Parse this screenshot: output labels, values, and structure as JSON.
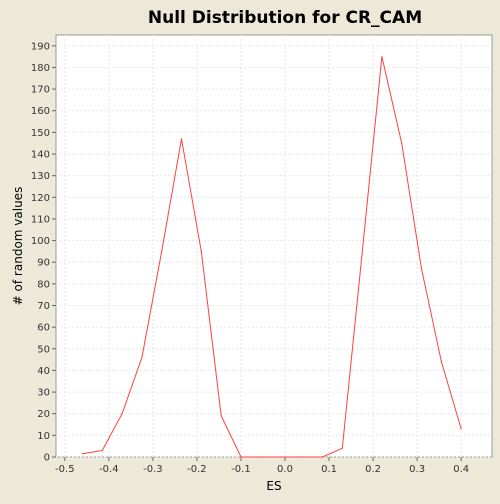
{
  "chart_data": {
    "type": "line",
    "title": "Null Distribution for CR_CAM",
    "xlabel": "ES",
    "ylabel": "# of random values",
    "xlim": [
      -0.52,
      0.47
    ],
    "ylim": [
      0,
      195
    ],
    "x_ticks": [
      -0.5,
      -0.4,
      -0.3,
      -0.2,
      -0.1,
      0.0,
      0.1,
      0.2,
      0.3,
      0.4
    ],
    "x_tick_labels": [
      "-0.5",
      "-0.4",
      "-0.3",
      "-0.2",
      "-0.1",
      "0.0",
      "0.1",
      "0.2",
      "0.3",
      "0.4"
    ],
    "y_ticks": [
      0,
      10,
      20,
      30,
      40,
      50,
      60,
      70,
      80,
      90,
      100,
      110,
      120,
      130,
      140,
      150,
      160,
      170,
      180,
      190
    ],
    "grid": true,
    "colors": {
      "line": "#ff4040",
      "plot_bg": "#ffffff",
      "grid": "#e6e6e6",
      "page_bg": "#ece9d8"
    },
    "series": [
      {
        "x": [
          -0.46,
          -0.415,
          -0.37,
          -0.325,
          -0.28,
          -0.235,
          -0.19,
          -0.145,
          -0.1,
          -0.055,
          -0.01,
          0.035,
          0.085,
          0.13,
          0.175,
          0.22,
          0.265,
          0.31,
          0.355,
          0.4
        ],
        "y": [
          1.5,
          3,
          20,
          46,
          95,
          147,
          95,
          19,
          0,
          0,
          0,
          0,
          0,
          4,
          94,
          185,
          145,
          87,
          44,
          13
        ]
      }
    ]
  }
}
